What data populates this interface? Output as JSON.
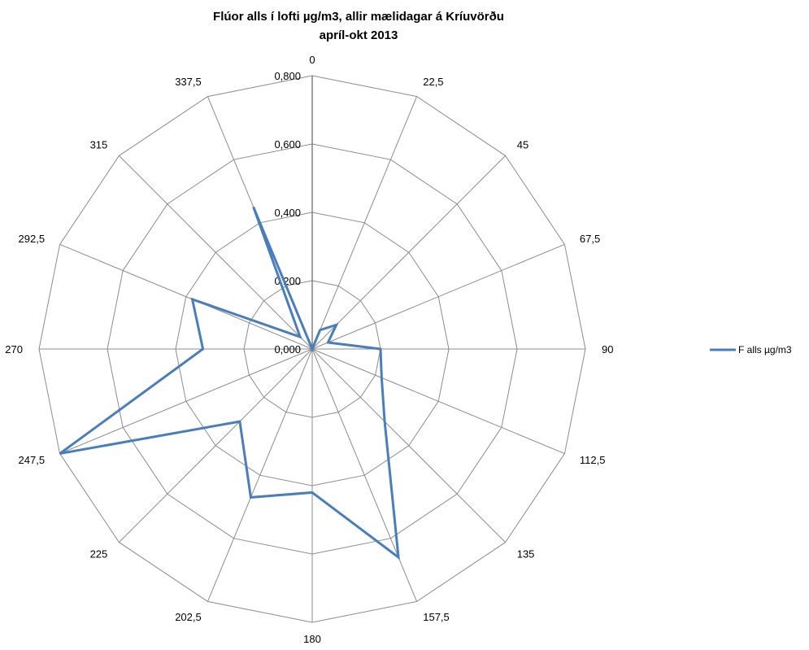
{
  "chart_data": {
    "type": "radar",
    "title": [
      "Flúor alls í lofti µg/m3, allir mælidagar á Kríuvörðu",
      "apríl-okt 2013"
    ],
    "categories": [
      "0",
      "22,5",
      "45",
      "67,5",
      "90",
      "112,5",
      "135",
      "157,5",
      "180",
      "202,5",
      "225",
      "247,5",
      "270",
      "292,5",
      "315",
      "337,5"
    ],
    "radial_ticks": [
      "0,000",
      "0,200",
      "0,400",
      "0,600",
      "0,800"
    ],
    "radial_tick_values": [
      0,
      0.2,
      0.4,
      0.6,
      0.8
    ],
    "rlim": [
      0,
      0.8
    ],
    "series": [
      {
        "name": "F alls µg/m3",
        "color": "#4a7ebb",
        "values": [
          0.0,
          0.06,
          0.1,
          0.05,
          0.2,
          0.22,
          0.3,
          0.66,
          0.42,
          0.47,
          0.3,
          0.8,
          0.32,
          0.38,
          0.05,
          0.45
        ]
      }
    ],
    "legend_position": "right",
    "grid": true
  }
}
